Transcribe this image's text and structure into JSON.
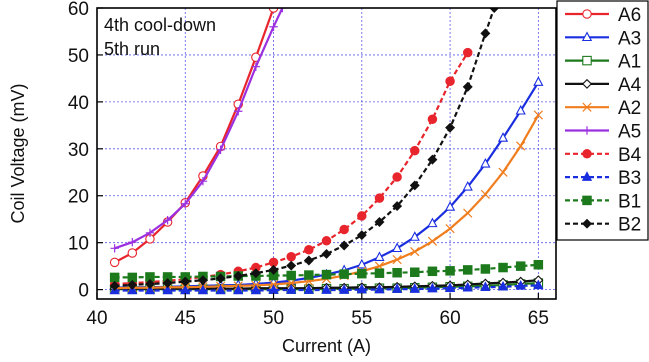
{
  "chart_data": {
    "type": "line",
    "title": "",
    "xlabel": "Current (A)",
    "ylabel": "Coil Voltage (mV)",
    "xlim": [
      40,
      66
    ],
    "ylim": [
      -2,
      60
    ],
    "xticks": [
      40,
      45,
      50,
      55,
      60,
      65
    ],
    "yticks": [
      0,
      10,
      20,
      30,
      40,
      50,
      60
    ],
    "grid": true,
    "annotations": [
      "4th cool-down",
      "5th run"
    ],
    "legend_position": "right",
    "series": [
      {
        "name": "A6",
        "color": "#e8242c",
        "marker": "circle-open",
        "dash": "solid",
        "x": [
          41,
          42,
          43,
          44,
          45,
          46,
          47,
          48,
          49,
          50
        ],
        "y": [
          5.8,
          7.8,
          10.8,
          14.4,
          18.5,
          24.2,
          30.5,
          39.5,
          49.5,
          60
        ]
      },
      {
        "name": "A3",
        "color": "#1a2ee0",
        "marker": "triangle-open",
        "dash": "solid",
        "x": [
          41,
          42,
          43,
          44,
          45,
          46,
          47,
          48,
          49,
          50,
          51,
          52,
          53,
          54,
          55,
          56,
          57,
          58,
          59,
          60,
          61,
          62,
          63,
          64,
          65
        ],
        "y": [
          0.4,
          0.5,
          0.5,
          0.6,
          0.7,
          0.8,
          0.9,
          1.0,
          1.2,
          1.5,
          1.9,
          2.5,
          3.2,
          4.1,
          5.3,
          6.9,
          8.8,
          11.2,
          14.1,
          17.6,
          21.9,
          26.8,
          32.3,
          38.1,
          44.2
        ]
      },
      {
        "name": "A1",
        "color": "#1c7a1c",
        "marker": "square-open",
        "dash": "solid",
        "x": [
          41,
          42,
          43,
          44,
          45,
          46,
          47,
          48,
          49,
          50,
          51,
          52,
          53,
          54,
          55,
          56,
          57,
          58,
          59,
          60,
          61,
          62,
          63,
          64,
          65
        ],
        "y": [
          0.1,
          0.1,
          0.1,
          0.1,
          0.1,
          0.1,
          0.1,
          0.1,
          0.1,
          0.1,
          0.1,
          0.1,
          0.2,
          0.2,
          0.2,
          0.3,
          0.3,
          0.4,
          0.5,
          0.6,
          0.7,
          0.8,
          1.0,
          1.2,
          1.4
        ]
      },
      {
        "name": "A4",
        "color": "#111111",
        "marker": "diamond-open",
        "dash": "solid",
        "x": [
          41,
          42,
          43,
          44,
          45,
          46,
          47,
          48,
          49,
          50,
          51,
          52,
          53,
          54,
          55,
          56,
          57,
          58,
          59,
          60,
          61,
          62,
          63,
          64,
          65
        ],
        "y": [
          0.2,
          0.2,
          0.2,
          0.2,
          0.2,
          0.2,
          0.2,
          0.2,
          0.3,
          0.3,
          0.3,
          0.3,
          0.4,
          0.4,
          0.5,
          0.5,
          0.6,
          0.7,
          0.8,
          0.9,
          1.1,
          1.3,
          1.5,
          1.7,
          2.0
        ]
      },
      {
        "name": "A2",
        "color": "#f07d1e",
        "marker": "x",
        "dash": "solid",
        "x": [
          41,
          42,
          43,
          44,
          45,
          46,
          47,
          48,
          49,
          50,
          51,
          52,
          53,
          54,
          55,
          56,
          57,
          58,
          59,
          60,
          61,
          62,
          63,
          64,
          65
        ],
        "y": [
          0.3,
          0.4,
          0.4,
          0.5,
          0.5,
          0.6,
          0.7,
          0.8,
          0.9,
          1.1,
          1.4,
          1.8,
          2.3,
          3.0,
          3.9,
          5.0,
          6.4,
          8.1,
          10.3,
          13.0,
          16.3,
          20.3,
          25.0,
          30.6,
          37.2
        ]
      },
      {
        "name": "A5",
        "color": "#9b30e0",
        "marker": "plus",
        "dash": "solid",
        "x": [
          41,
          42,
          43,
          44,
          45,
          46,
          47,
          48,
          49,
          50,
          50.5
        ],
        "y": [
          8.8,
          10.1,
          12.1,
          14.8,
          18.3,
          23.1,
          29.8,
          38.0,
          47.5,
          56.0,
          60
        ]
      },
      {
        "name": "B4",
        "color": "#e8242c",
        "marker": "circle-filled",
        "dash": "dashed",
        "x": [
          41,
          42,
          43,
          44,
          45,
          46,
          47,
          48,
          49,
          50,
          51,
          52,
          53,
          54,
          55,
          56,
          57,
          58,
          59,
          60,
          61
        ],
        "y": [
          1.2,
          1.4,
          1.6,
          1.9,
          2.2,
          2.7,
          3.2,
          3.9,
          4.7,
          5.8,
          7.0,
          8.5,
          10.4,
          12.8,
          15.7,
          19.5,
          24.0,
          29.6,
          36.3,
          44.4,
          50.5
        ]
      },
      {
        "name": "B3",
        "color": "#1a2ee0",
        "marker": "triangle-filled",
        "dash": "dashed",
        "x": [
          41,
          42,
          43,
          44,
          45,
          46,
          47,
          48,
          49,
          50,
          51,
          52,
          53,
          54,
          55,
          56,
          57,
          58,
          59,
          60,
          61,
          62,
          63,
          64,
          65
        ],
        "y": [
          -0.2,
          -0.2,
          -0.2,
          -0.2,
          -0.2,
          -0.2,
          -0.2,
          -0.2,
          -0.2,
          -0.1,
          -0.1,
          -0.1,
          -0.1,
          -0.1,
          0.0,
          0.0,
          0.1,
          0.1,
          0.2,
          0.3,
          0.4,
          0.5,
          0.6,
          0.8,
          0.9
        ]
      },
      {
        "name": "B1",
        "color": "#1c7a1c",
        "marker": "square-filled",
        "dash": "dashed",
        "x": [
          41,
          42,
          43,
          44,
          45,
          46,
          47,
          48,
          49,
          50,
          51,
          52,
          53,
          54,
          55,
          56,
          57,
          58,
          59,
          60,
          61,
          62,
          63,
          64,
          65
        ],
        "y": [
          2.6,
          2.6,
          2.7,
          2.7,
          2.7,
          2.8,
          2.8,
          2.9,
          2.9,
          3.0,
          3.0,
          3.1,
          3.2,
          3.3,
          3.4,
          3.5,
          3.6,
          3.7,
          3.9,
          4.0,
          4.2,
          4.4,
          4.7,
          5.0,
          5.3
        ]
      },
      {
        "name": "B2",
        "color": "#111111",
        "marker": "diamond-filled",
        "dash": "dashed",
        "x": [
          41,
          42,
          43,
          44,
          45,
          46,
          47,
          48,
          49,
          50,
          51,
          52,
          53,
          54,
          55,
          56,
          57,
          58,
          59,
          60,
          61,
          62,
          62.5
        ],
        "y": [
          0.8,
          1.0,
          1.2,
          1.4,
          1.7,
          2.0,
          2.4,
          2.9,
          3.5,
          4.2,
          5.1,
          6.2,
          7.6,
          9.4,
          11.6,
          14.4,
          17.8,
          22.2,
          27.7,
          34.5,
          43.2,
          54.6,
          60
        ]
      }
    ]
  }
}
